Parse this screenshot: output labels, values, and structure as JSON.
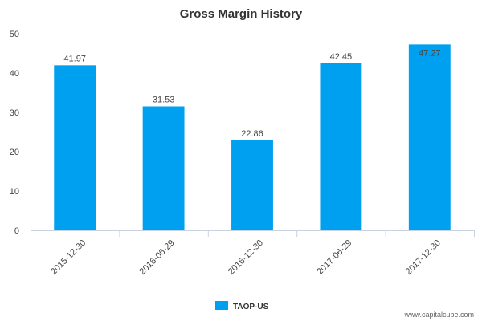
{
  "chart_data": {
    "type": "bar",
    "title": "Gross Margin History",
    "xlabel": "",
    "ylabel": "",
    "categories": [
      "2015-12-30",
      "2016-06-29",
      "2016-12-30",
      "2017-06-29",
      "2017-12-30"
    ],
    "series": [
      {
        "name": "TAOP-US",
        "values": [
          41.97,
          31.53,
          22.86,
          42.45,
          47.27
        ],
        "labels": [
          "41.97",
          "31.53",
          "22.86",
          "42.45",
          "47.27"
        ],
        "color": "#00a0f0"
      }
    ],
    "ylim": [
      0,
      50
    ],
    "yticks": [
      0,
      10,
      20,
      30,
      40,
      50
    ],
    "grid": false,
    "legend_position": "bottom-center"
  },
  "colors": {
    "bar": "#00a0f0",
    "axis": "#c8d2e0",
    "text": "#333333"
  },
  "watermark": "www.capitalcube.com"
}
